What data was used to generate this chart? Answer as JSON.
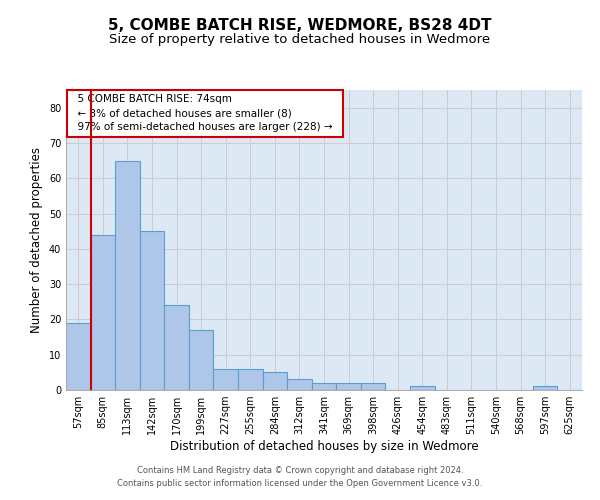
{
  "title1": "5, COMBE BATCH RISE, WEDMORE, BS28 4DT",
  "title2": "Size of property relative to detached houses in Wedmore",
  "xlabel": "Distribution of detached houses by size in Wedmore",
  "ylabel": "Number of detached properties",
  "footer1": "Contains HM Land Registry data © Crown copyright and database right 2024.",
  "footer2": "Contains public sector information licensed under the Open Government Licence v3.0.",
  "annotation_title": "5 COMBE BATCH RISE: 74sqm",
  "annotation_line1": "← 3% of detached houses are smaller (8)",
  "annotation_line2": "97% of semi-detached houses are larger (228) →",
  "bar_color": "#aec6e8",
  "bar_edge_color": "#5a9fd4",
  "highlight_color": "#cc0000",
  "bar_labels": [
    "57sqm",
    "85sqm",
    "113sqm",
    "142sqm",
    "170sqm",
    "199sqm",
    "227sqm",
    "255sqm",
    "284sqm",
    "312sqm",
    "341sqm",
    "369sqm",
    "398sqm",
    "426sqm",
    "454sqm",
    "483sqm",
    "511sqm",
    "540sqm",
    "568sqm",
    "597sqm",
    "625sqm"
  ],
  "bar_values": [
    19,
    44,
    65,
    45,
    24,
    17,
    6,
    6,
    5,
    3,
    2,
    2,
    2,
    0,
    1,
    0,
    0,
    0,
    0,
    1,
    0
  ],
  "red_line_x": 0.5,
  "ylim": [
    0,
    85
  ],
  "yticks": [
    0,
    10,
    20,
    30,
    40,
    50,
    60,
    70,
    80
  ],
  "title1_fontsize": 11,
  "title2_fontsize": 9.5,
  "xlabel_fontsize": 8.5,
  "ylabel_fontsize": 8.5,
  "tick_fontsize": 7,
  "annotation_fontsize": 7.5,
  "footer_fontsize": 6
}
